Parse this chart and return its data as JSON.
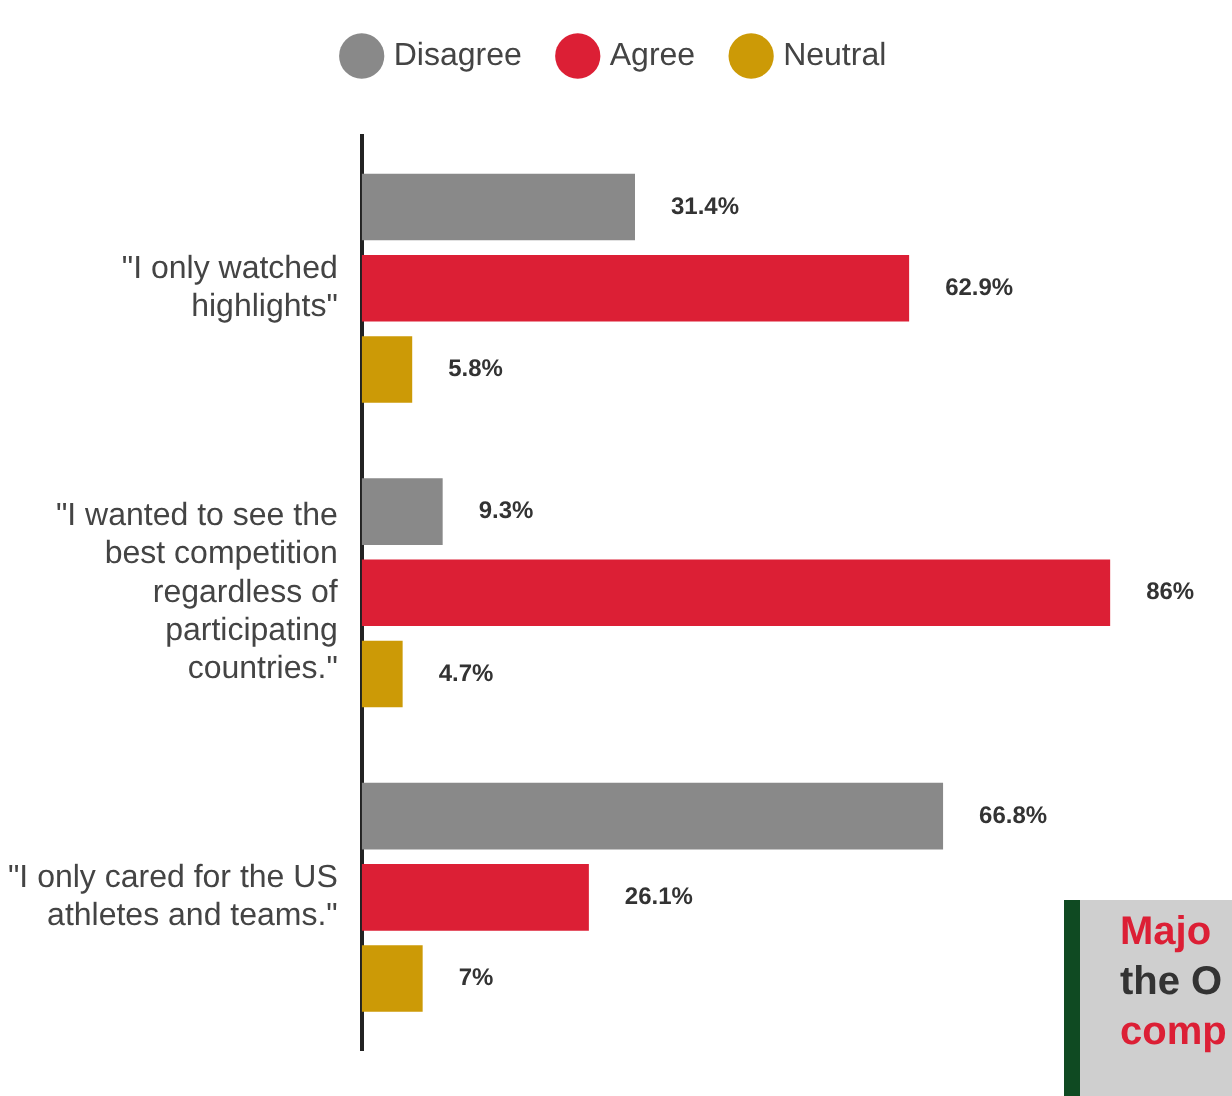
{
  "chart_data": {
    "type": "bar",
    "orientation": "horizontal",
    "categories": [
      "\"I only watched highlights\"",
      "\"I wanted to see the best competition regardless of participating countries.\"",
      "\"I only cared for the US athletes and teams.\""
    ],
    "series": [
      {
        "name": "Disagree",
        "color": "#898989",
        "values": [
          31.4,
          9.3,
          66.8
        ],
        "value_labels": [
          "31.4%",
          "9.3%",
          "66.8%"
        ]
      },
      {
        "name": "Agree",
        "color": "#dc1f35",
        "values": [
          62.9,
          86,
          26.1
        ],
        "value_labels": [
          "62.9%",
          "86%",
          "26.1%"
        ]
      },
      {
        "name": "Neutral",
        "color": "#cc9a06",
        "values": [
          5.8,
          4.7,
          7
        ],
        "value_labels": [
          "5.8%",
          "4.7%",
          "7%"
        ]
      }
    ],
    "tick_labels": "y",
    "grid": false,
    "legend": "top",
    "annotations": [
      "Majo",
      "the O",
      "comp"
    ]
  }
}
